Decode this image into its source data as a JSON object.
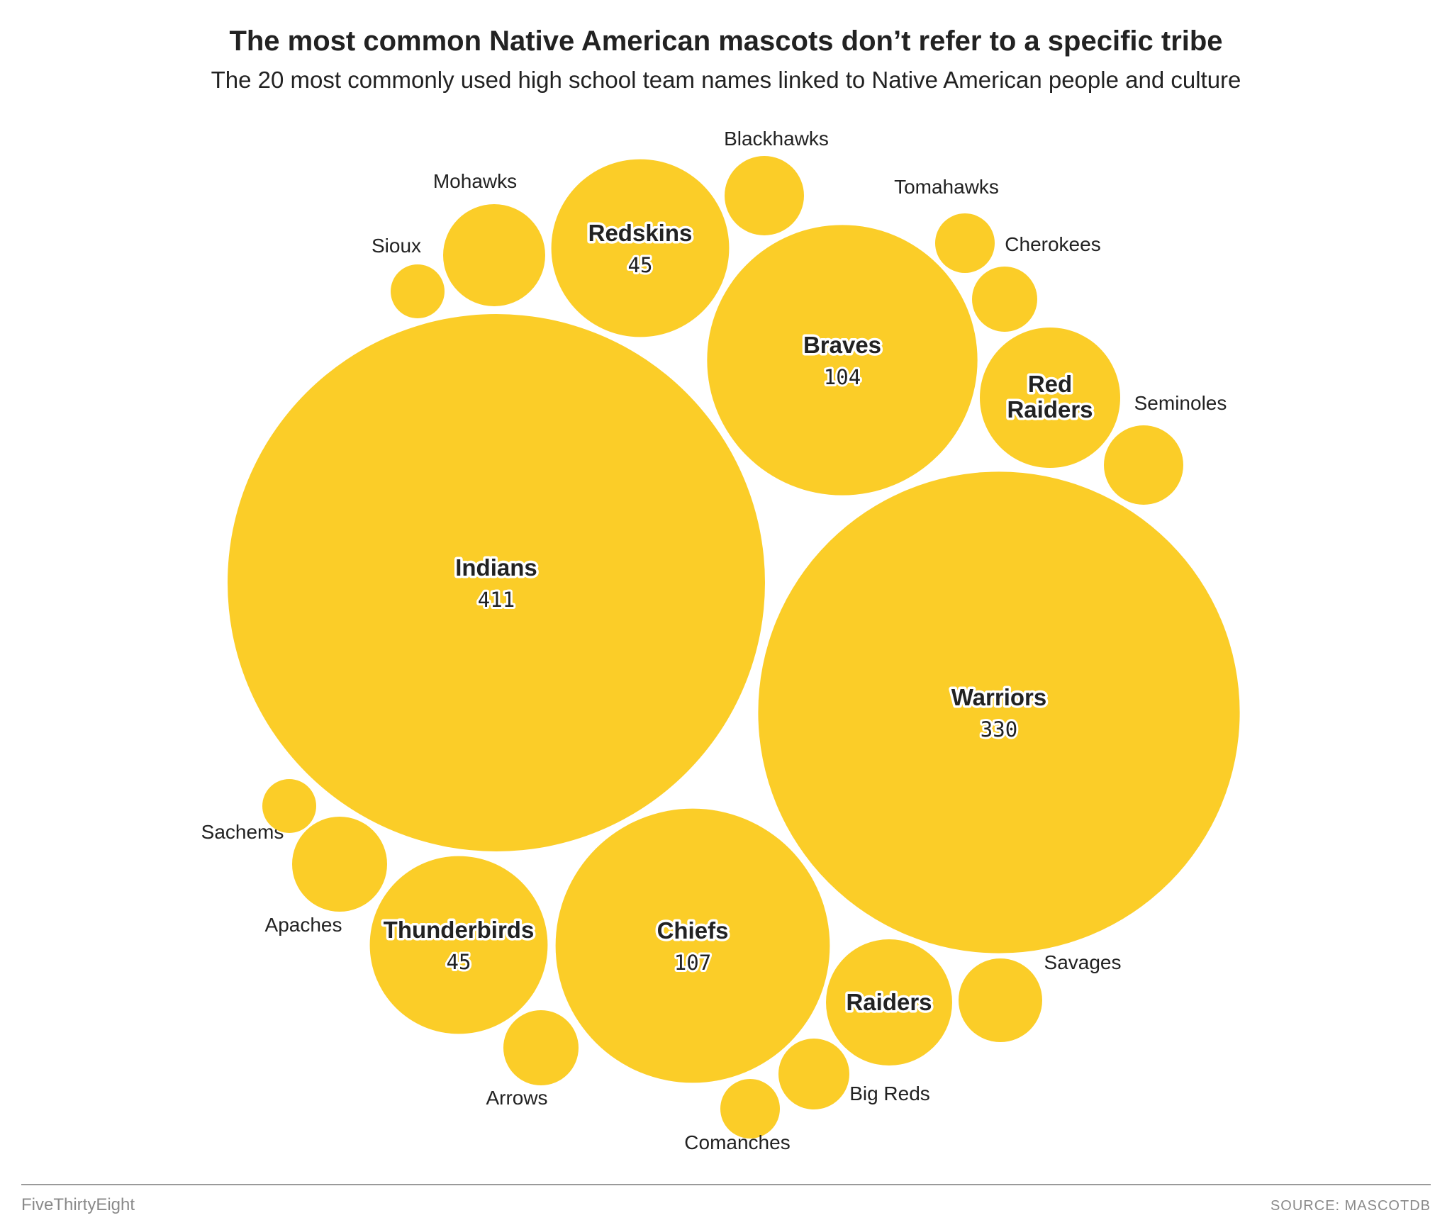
{
  "chart_data": {
    "type": "bubble",
    "title": "The most common Native American mascots don’t refer to a specific tribe",
    "subtitle": "The 20 most commonly used high school team names linked to Native American people and culture",
    "bubble_color": "#fbcd28",
    "items": [
      {
        "name": "Indians",
        "value": 411,
        "label_inside": true
      },
      {
        "name": "Warriors",
        "value": 330,
        "label_inside": true
      },
      {
        "name": "Chiefs",
        "value": 107,
        "label_inside": true
      },
      {
        "name": "Braves",
        "value": 104,
        "label_inside": true
      },
      {
        "name": "Redskins",
        "value": 45,
        "label_inside": true
      },
      {
        "name": "Thunderbirds",
        "value": 45,
        "label_inside": true
      },
      {
        "name": "Red Raiders",
        "value": 28,
        "label_inside": true
      },
      {
        "name": "Raiders",
        "value": 24,
        "label_inside": true
      },
      {
        "name": "Mohawks",
        "value": 15,
        "label_inside": false
      },
      {
        "name": "Sachems",
        "value": 13,
        "label_inside": false
      },
      {
        "name": "Blackhawks",
        "value": 10,
        "label_inside": false
      },
      {
        "name": "Seminoles",
        "value": 9,
        "label_inside": false
      },
      {
        "name": "Savages",
        "value": 10,
        "label_inside": false
      },
      {
        "name": "Arrows",
        "value": 8,
        "label_inside": false
      },
      {
        "name": "Big Reds",
        "value": 7,
        "label_inside": false
      },
      {
        "name": "Cherokees",
        "value": 6,
        "label_inside": false
      },
      {
        "name": "Comanches",
        "value": 5,
        "label_inside": false
      },
      {
        "name": "Tomahawks",
        "value": 5,
        "label_inside": false
      },
      {
        "name": "Apaches",
        "value": 4,
        "label_inside": false
      },
      {
        "name": "Sioux",
        "value": 4,
        "label_inside": false
      }
    ]
  },
  "footer": {
    "brand": "FiveThirtyEight",
    "source": "SOURCE: MASCOTDB"
  }
}
